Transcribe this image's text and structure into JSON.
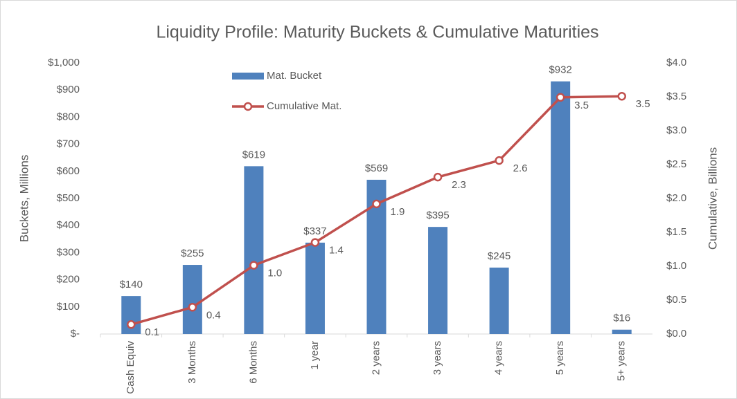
{
  "chart_data": {
    "type": "bar_line",
    "title": "Liquidity Profile: Maturity Buckets & Cumulative Maturities",
    "y_label": "Buckets, Millions",
    "y2_label": "Cumulative, Billions",
    "categories": [
      "Cash Equiv",
      "3 Months",
      "6 Months",
      "1 year",
      "2 years",
      "3 years",
      "4 years",
      "5 years",
      "5+ years"
    ],
    "series": [
      {
        "name": "Mat. Bucket",
        "type": "bar",
        "color": "#4f81bd",
        "values": [
          140,
          255,
          619,
          337,
          569,
          395,
          245,
          932,
          16
        ],
        "value_labels": [
          "$140",
          "$255",
          "$619",
          "$337",
          "$569",
          "$395",
          "$245",
          "$932",
          "$16"
        ]
      },
      {
        "name": "Cumulative Mat.",
        "type": "line",
        "axis": "y2",
        "color": "#c0504d",
        "values": [
          0.14,
          0.395,
          1.014,
          1.351,
          1.92,
          2.315,
          2.56,
          3.492,
          3.508
        ],
        "value_labels": [
          "0.1",
          "0.4",
          "1.0",
          "1.4",
          "1.9",
          "2.3",
          "2.6",
          "3.5",
          "3.5"
        ]
      }
    ],
    "ylim": [
      0,
      1000
    ],
    "yticks": [
      {
        "value": 0,
        "label": "$-"
      },
      {
        "value": 100,
        "label": "$100"
      },
      {
        "value": 200,
        "label": "$200"
      },
      {
        "value": 300,
        "label": "$300"
      },
      {
        "value": 400,
        "label": "$400"
      },
      {
        "value": 500,
        "label": "$500"
      },
      {
        "value": 600,
        "label": "$600"
      },
      {
        "value": 700,
        "label": "$700"
      },
      {
        "value": 800,
        "label": "$800"
      },
      {
        "value": 900,
        "label": "$900"
      },
      {
        "value": 1000,
        "label": "$1,000"
      }
    ],
    "y2lim": [
      0,
      4
    ],
    "y2ticks": [
      {
        "value": 0,
        "label": "$0.0"
      },
      {
        "value": 0.5,
        "label": "$0.5"
      },
      {
        "value": 1,
        "label": "$1.0"
      },
      {
        "value": 1.5,
        "label": "$1.5"
      },
      {
        "value": 2,
        "label": "$2.0"
      },
      {
        "value": 2.5,
        "label": "$2.5"
      },
      {
        "value": 3,
        "label": "$3.0"
      },
      {
        "value": 3.5,
        "label": "$3.5"
      },
      {
        "value": 4,
        "label": "$4.0"
      }
    ],
    "grid": false,
    "legend": "top-left"
  }
}
